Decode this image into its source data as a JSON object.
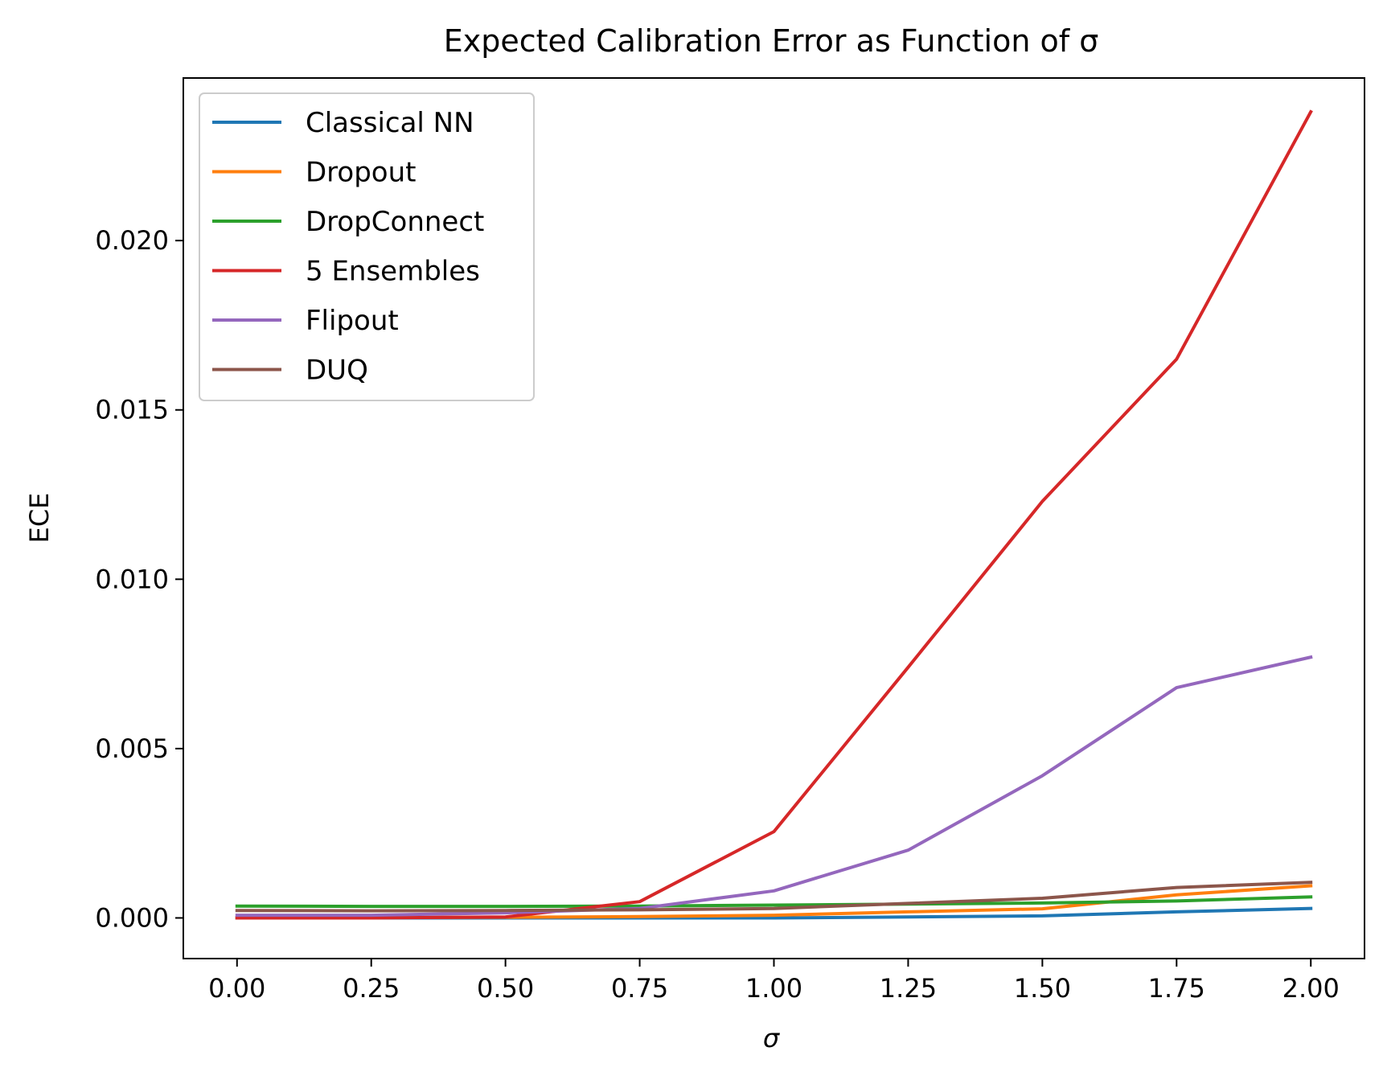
{
  "chart_data": {
    "type": "line",
    "title": "Expected Calibration Error as Function of σ",
    "xlabel": "σ",
    "ylabel": "ECE",
    "xlim": [
      -0.1,
      2.1
    ],
    "ylim": [
      -0.0012,
      0.0248
    ],
    "x_ticks": [
      0.0,
      0.25,
      0.5,
      0.75,
      1.0,
      1.25,
      1.5,
      1.75,
      2.0
    ],
    "x_tick_labels": [
      "0.00",
      "0.25",
      "0.50",
      "0.75",
      "1.00",
      "1.25",
      "1.50",
      "1.75",
      "2.00"
    ],
    "y_ticks": [
      0.0,
      0.005,
      0.01,
      0.015,
      0.02
    ],
    "y_tick_labels": [
      "0.000",
      "0.005",
      "0.010",
      "0.015",
      "0.020"
    ],
    "grid": false,
    "legend_position": "top-left",
    "x": [
      0.0,
      0.25,
      0.5,
      0.75,
      1.0,
      1.25,
      1.5,
      1.75,
      2.0
    ],
    "series": [
      {
        "name": "Classical NN",
        "color": "#1f77b4",
        "values": [
          0.0,
          0.0,
          0.0,
          0.0,
          0.0,
          3e-05,
          6e-05,
          0.00018,
          0.00028
        ]
      },
      {
        "name": "Dropout",
        "color": "#ff7f0e",
        "values": [
          1e-05,
          1e-05,
          2e-05,
          4e-05,
          8e-05,
          0.00018,
          0.00027,
          0.00068,
          0.00095
        ]
      },
      {
        "name": "DropConnect",
        "color": "#2ca02c",
        "values": [
          0.00035,
          0.00034,
          0.00034,
          0.00035,
          0.00038,
          0.00041,
          0.00044,
          0.0005,
          0.00062
        ]
      },
      {
        "name": "5 Ensembles",
        "color": "#d62728",
        "values": [
          0.0,
          0.0,
          3e-05,
          0.00048,
          0.00255,
          0.0074,
          0.0123,
          0.0165,
          0.0238
        ]
      },
      {
        "name": "Flipout",
        "color": "#9467bd",
        "values": [
          8e-05,
          8e-05,
          0.00015,
          0.00028,
          0.0008,
          0.002,
          0.0042,
          0.0068,
          0.0077
        ]
      },
      {
        "name": "DUQ",
        "color": "#8c564b",
        "values": [
          0.00022,
          0.00021,
          0.00022,
          0.00024,
          0.00028,
          0.00043,
          0.00058,
          0.0009,
          0.00105
        ]
      }
    ]
  }
}
